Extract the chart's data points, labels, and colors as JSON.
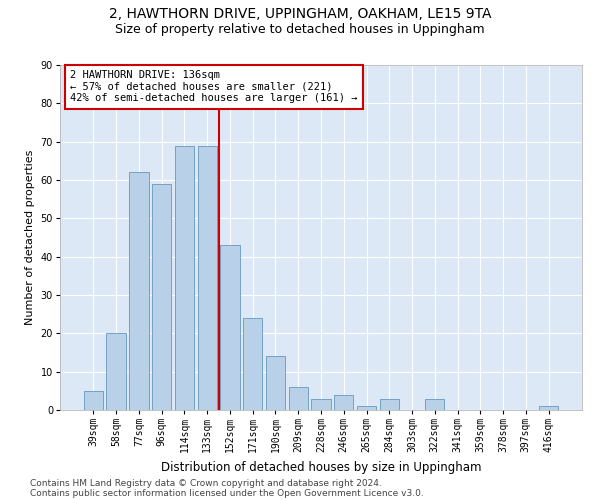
{
  "title1": "2, HAWTHORN DRIVE, UPPINGHAM, OAKHAM, LE15 9TA",
  "title2": "Size of property relative to detached houses in Uppingham",
  "xlabel": "Distribution of detached houses by size in Uppingham",
  "ylabel": "Number of detached properties",
  "categories": [
    "39sqm",
    "58sqm",
    "77sqm",
    "96sqm",
    "114sqm",
    "133sqm",
    "152sqm",
    "171sqm",
    "190sqm",
    "209sqm",
    "228sqm",
    "246sqm",
    "265sqm",
    "284sqm",
    "303sqm",
    "322sqm",
    "341sqm",
    "359sqm",
    "378sqm",
    "397sqm",
    "416sqm"
  ],
  "values": [
    5,
    20,
    62,
    59,
    69,
    69,
    43,
    24,
    14,
    6,
    3,
    4,
    1,
    3,
    0,
    3,
    0,
    0,
    0,
    0,
    1
  ],
  "bar_color": "#b8d0e8",
  "bar_edge_color": "#6699bb",
  "vline_x_idx": 5,
  "vline_color": "#cc0000",
  "annotation_line1": "2 HAWTHORN DRIVE: 136sqm",
  "annotation_line2": "← 57% of detached houses are smaller (221)",
  "annotation_line3": "42% of semi-detached houses are larger (161) →",
  "annotation_box_facecolor": "white",
  "annotation_box_edgecolor": "#cc0000",
  "ylim": [
    0,
    90
  ],
  "yticks": [
    0,
    10,
    20,
    30,
    40,
    50,
    60,
    70,
    80,
    90
  ],
  "figure_bg": "#ffffff",
  "plot_bg": "#dce8f5",
  "grid_color": "#ffffff",
  "title1_fontsize": 10,
  "title2_fontsize": 9,
  "xlabel_fontsize": 8.5,
  "ylabel_fontsize": 8,
  "tick_fontsize": 7,
  "annotation_fontsize": 7.5,
  "footer_fontsize": 6.5,
  "footer1": "Contains HM Land Registry data © Crown copyright and database right 2024.",
  "footer2": "Contains public sector information licensed under the Open Government Licence v3.0."
}
